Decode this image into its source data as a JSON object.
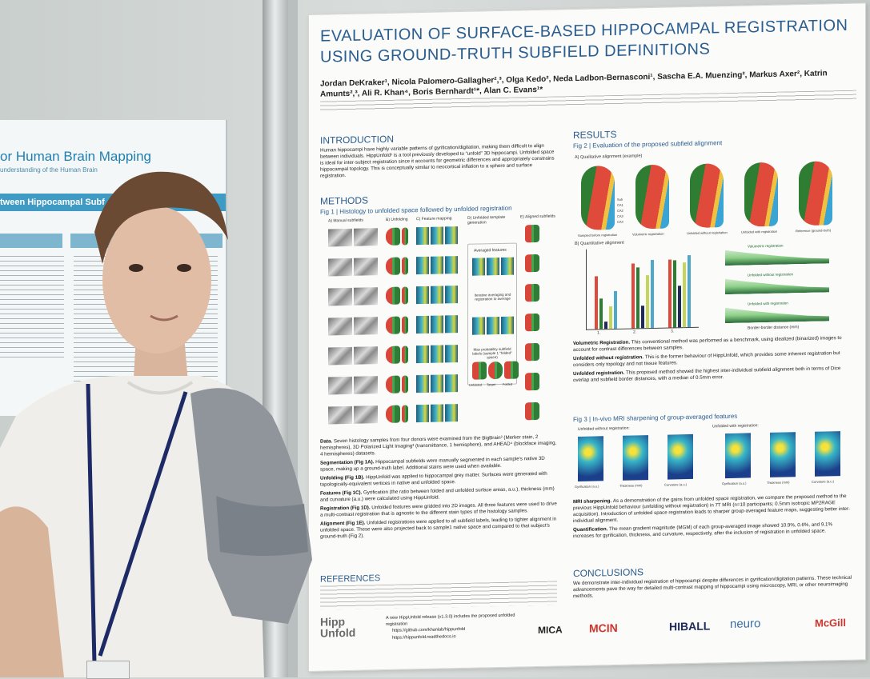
{
  "left_poster": {
    "title": "or Human Brain Mapping",
    "subtitle": "understanding of the Human Brain",
    "band": "tween Hippocampal Subf"
  },
  "poster": {
    "title": "EVALUATION OF SURFACE-BASED HIPPOCAMPAL REGISTRATION USING GROUND-TRUTH SUBFIELD DEFINITIONS",
    "authors": "Jordan DeKraker¹, Nicola Palomero-Gallagher²,³, Olga Kedo², Neda Ladbon-Bernasconi¹, Sascha E.A. Muenzing², Markus Axer², Katrin Amunts²,³, Ali R. Khan⁴, Boris Bernhardt¹*, Alan C. Evans¹*",
    "intro_heading": "INTRODUCTION",
    "intro_text": "Human hippocampi have highly variable patterns of gyrification/digitation, making them difficult to align between individuals. HippUnfold¹ is a tool previously developed to \"unfold\" 3D hippocampi. Unfolded space is ideal for inter-subject registration since it accounts for geometric differences and appropriately constrains hippocampal topology. This is conceptually similar to neocortical inflation to a sphere and surface registration.",
    "methods_heading": "METHODS",
    "fig1_caption": "Fig 1 | Histology to unfolded space followed by unfolded registration",
    "fig1_labels": [
      "A) Manual subfields",
      "B) Unfolding",
      "C) Feature mapping",
      "D) Unfolded template generation",
      "E) Aligned subfields"
    ],
    "fig1_mid": [
      "Averaged features",
      "Iterative averaging and registration to average",
      "Max probability subfield labels (sample 1 \"folded\" space)",
      "Unfolded",
      "Target",
      "Folded"
    ],
    "methods_text": [
      {
        "label": "Data.",
        "text": "Seven histology samples from four donors were examined from the BigBrain² (Merker stain, 2 hemispheres), 3D Polarized Light Imaging³ (transmittance, 1 hemisphere), and AHEAD⁴ (blockface imaging, 4 hemispheres) datasets."
      },
      {
        "label": "Segmentation (Fig 1A).",
        "text": "Hippocampal subfields were manually segmented in each sample's native 3D space, making up a ground-truth label. Additional stains were used when available."
      },
      {
        "label": "Unfolding (Fig 1B).",
        "text": "HippUnfold was applied to hippocampal grey matter. Surfaces were generated with topologically-equivalent vertices in native and unfolded space."
      },
      {
        "label": "Features (Fig 1C).",
        "text": "Gyrification (the ratio between folded and unfolded surface areas, a.u.), thickness (mm) and curvature (a.u.) were calculated using HippUnfold."
      },
      {
        "label": "Registration (Fig 1D).",
        "text": "Unfolded features were gridded into 2D images. All three features were used to drive a multi-contrast registration that is agnostic to the different stain types of the histology samples."
      },
      {
        "label": "Alignment (Fig 1E).",
        "text": "Unfolded registrations were applied to all subfield labels, leading to tighter alignment in unfolded space. These were also projected back to sample1 native space and compared to that subject's ground-truth (Fig 2)."
      }
    ],
    "references_heading": "REFERENCES",
    "footer_note": "A new HippUnfold release (v1.3.0) includes the proposed unfolded registration",
    "footer_links": [
      "https://github.com/khanlab/hippunfold",
      "https://hippunfold.readthedocs.io"
    ],
    "results_heading": "RESULTS",
    "fig2_caption": "Fig 2 | Evaluation of the proposed subfield alignment",
    "fig2a": "A) Qualitative alignment (example)",
    "fig2a_labels": [
      "Sampled before registration",
      "Volumetric registration",
      "Unfolded without registration",
      "Unfolded with registration",
      "Reference (ground-truth)"
    ],
    "fig2a_subfields": [
      "Sub",
      "CA1",
      "CA2",
      "CA3",
      "CA4"
    ],
    "fig2b": "B) Quantitative alignment",
    "fig2b_ylabel": "Dice overlap (to sample1 native space)",
    "fig2b_xlabel": "Border-border distance (mm)",
    "fig2b_xticks": [
      "1.",
      "2.",
      "3."
    ],
    "fig2b_panels": [
      "Volumetric registration",
      "Unfolded without registration",
      "Unfolded with registration"
    ],
    "results_text": [
      {
        "label": "Volumetric Registration.",
        "text": "This conventional method was performed as a benchmark, using idealized (binarized) images to account for contrast differences between samples."
      },
      {
        "label": "Unfolded without registration.",
        "text": "This is the former behaviour of HippUnfold, which provides some inherent registration but considers only topology and not tissue features."
      },
      {
        "label": "Unfolded registration.",
        "text": "This proposed method showed the highest inter-individual subfield alignment both in terms of Dice overlap and subfield border distances, with a median of 0.5mm error."
      }
    ],
    "fig3_caption": "Fig 3 | In-vivo MRI sharpening of group-averaged features",
    "fig3_groups": [
      "Unfolded without registration:",
      "Unfolded with registration:"
    ],
    "fig3_labels": [
      "Gyrification (a.u.)",
      "Thickness (mm)",
      "Curvature (a.u.)",
      "Gyrification (a.u.)",
      "Thickness (mm)",
      "Curvature (a.u.)"
    ],
    "mri_text": [
      {
        "label": "MRI sharpening.",
        "text": "As a demonstration of the gains from unfolded space registration, we compare the proposed method to the previous HippUnfold behaviour (unfolding without registration) in 7T MRI (n=10 participants; 0.5mm isotropic MP2RAGE acquisition). Introduction of unfolded space registration leads to sharper group-averaged feature maps, suggesting better inter-individual alignment."
      },
      {
        "label": "Quantification.",
        "text": "The mean gradient magnitude (MGM) of each group-averaged image showed 10.9%, 0.6%, and 9.1% increases for gyrification, thickness, and curvature, respectively, after the inclusion of registration in unfolded space."
      }
    ],
    "conclusions_heading": "CONCLUSIONS",
    "conclusions_text": "We demonstrate inter-individual registration of hippocampi despite differences in gyrification/digitation patterns. These technical advancements pave the way for detailed multi-contrast mapping of hippocampi using microscopy, MRI, or other neuroimaging methods.",
    "logos": [
      "Hipp Unfold",
      "MICA",
      "MCIN",
      "HIBALL",
      "neuro",
      "McGill"
    ]
  },
  "colors": {
    "title_blue": "#2a5d8f",
    "subfield_red": "#e04a3a",
    "subfield_green": "#2e7d32",
    "mcin_red": "#d0342c"
  }
}
